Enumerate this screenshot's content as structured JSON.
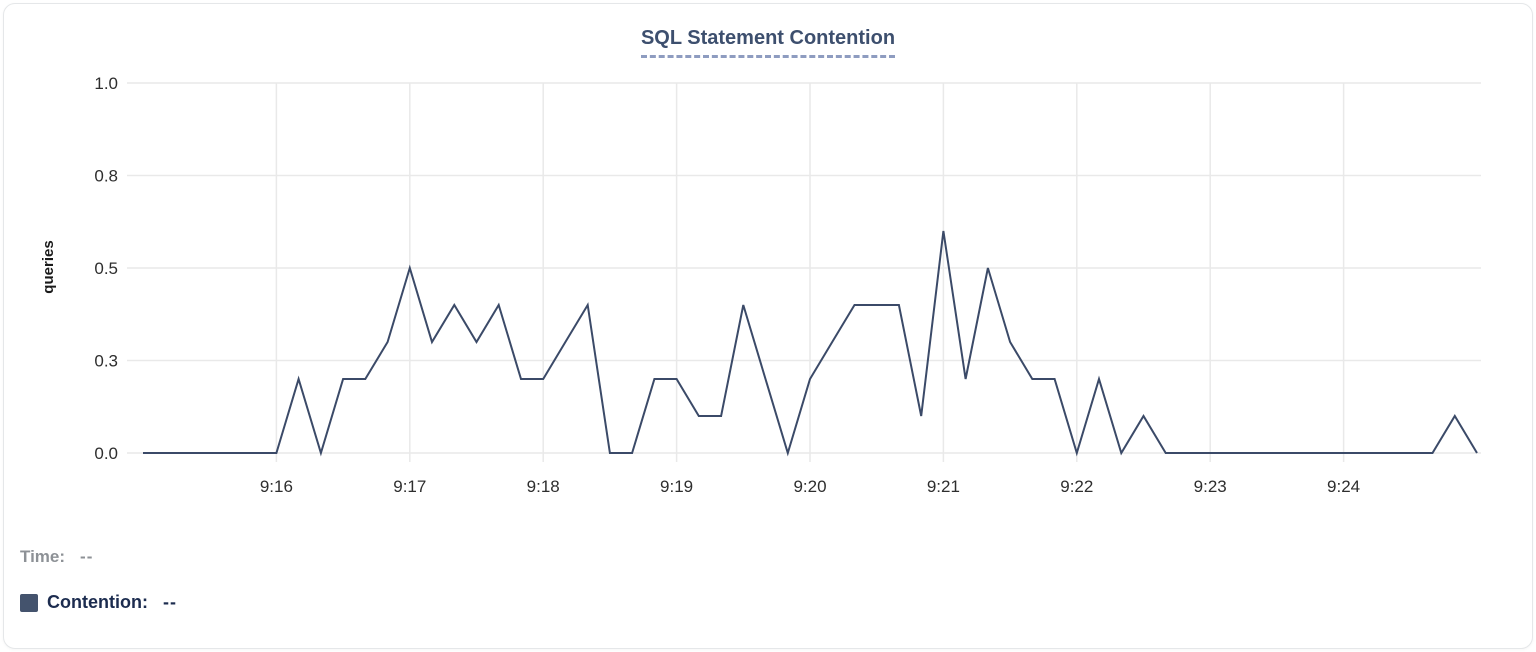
{
  "chart": {
    "title": "SQL Statement Contention"
  },
  "legend": {
    "time_label": "Time:",
    "time_value": "--",
    "contention_label": "Contention:",
    "contention_value": "--"
  },
  "colors": {
    "accent_line": "#3b4a68",
    "grid": "#e9e9e9",
    "title": "#3d4f6e",
    "title_underline": "#8e9cc0",
    "tick_text": "#2e2e2e",
    "axis_label_text": "#1a1a1a",
    "legend_time_text": "#8d9196",
    "legend_contention_text": "#1c2c4f",
    "legend_swatch": "#44536d",
    "card_background": "#ffffff",
    "card_border": "#e5e7e9"
  },
  "chart_data": {
    "type": "line",
    "title": "SQL Statement Contention",
    "xlabel": "",
    "ylabel": "queries",
    "x_range": [
      "9:15:00",
      "9:25:00"
    ],
    "ylim": [
      0,
      1
    ],
    "grid": true,
    "legend_position": "bottom-left",
    "x_ticks": [
      "9:16",
      "9:17",
      "9:18",
      "9:19",
      "9:20",
      "9:21",
      "9:22",
      "9:23",
      "9:24"
    ],
    "y_ticks": [
      {
        "value": 0,
        "label": "0.0"
      },
      {
        "value": 0.25,
        "label": "0.3"
      },
      {
        "value": 0.5,
        "label": "0.5"
      },
      {
        "value": 0.75,
        "label": "0.8"
      },
      {
        "value": 1,
        "label": "1.0"
      }
    ],
    "series": [
      {
        "name": "Contention",
        "color": "#3b4a68",
        "points": [
          [
            "9:15:00",
            0
          ],
          [
            "9:15:10",
            0
          ],
          [
            "9:15:20",
            0
          ],
          [
            "9:15:30",
            0
          ],
          [
            "9:15:40",
            0
          ],
          [
            "9:15:50",
            0
          ],
          [
            "9:16:00",
            0
          ],
          [
            "9:16:10",
            0.2
          ],
          [
            "9:16:20",
            0
          ],
          [
            "9:16:30",
            0.2
          ],
          [
            "9:16:40",
            0.2
          ],
          [
            "9:16:50",
            0.3
          ],
          [
            "9:17:00",
            0.5
          ],
          [
            "9:17:10",
            0.3
          ],
          [
            "9:17:20",
            0.4
          ],
          [
            "9:17:30",
            0.3
          ],
          [
            "9:17:40",
            0.4
          ],
          [
            "9:17:50",
            0.2
          ],
          [
            "9:18:00",
            0.2
          ],
          [
            "9:18:10",
            0.3
          ],
          [
            "9:18:20",
            0.4
          ],
          [
            "9:18:30",
            0
          ],
          [
            "9:18:40",
            0
          ],
          [
            "9:18:50",
            0.2
          ],
          [
            "9:19:00",
            0.2
          ],
          [
            "9:19:10",
            0.1
          ],
          [
            "9:19:20",
            0.1
          ],
          [
            "9:19:30",
            0.4
          ],
          [
            "9:19:40",
            0.2
          ],
          [
            "9:19:50",
            0
          ],
          [
            "9:20:00",
            0.2
          ],
          [
            "9:20:10",
            0.3
          ],
          [
            "9:20:20",
            0.4
          ],
          [
            "9:20:30",
            0.4
          ],
          [
            "9:20:40",
            0.4
          ],
          [
            "9:20:50",
            0.1
          ],
          [
            "9:21:00",
            0.6
          ],
          [
            "9:21:10",
            0.2
          ],
          [
            "9:21:20",
            0.5
          ],
          [
            "9:21:30",
            0.3
          ],
          [
            "9:21:40",
            0.2
          ],
          [
            "9:21:50",
            0.2
          ],
          [
            "9:22:00",
            0
          ],
          [
            "9:22:10",
            0.2
          ],
          [
            "9:22:20",
            0
          ],
          [
            "9:22:30",
            0.1
          ],
          [
            "9:22:40",
            0
          ],
          [
            "9:22:50",
            0
          ],
          [
            "9:23:00",
            0
          ],
          [
            "9:23:10",
            0
          ],
          [
            "9:23:20",
            0
          ],
          [
            "9:23:30",
            0
          ],
          [
            "9:23:40",
            0
          ],
          [
            "9:23:50",
            0
          ],
          [
            "9:24:00",
            0
          ],
          [
            "9:24:10",
            0
          ],
          [
            "9:24:20",
            0
          ],
          [
            "9:24:30",
            0
          ],
          [
            "9:24:40",
            0
          ],
          [
            "9:24:50",
            0.1
          ],
          [
            "9:25:00",
            0
          ]
        ]
      }
    ]
  }
}
